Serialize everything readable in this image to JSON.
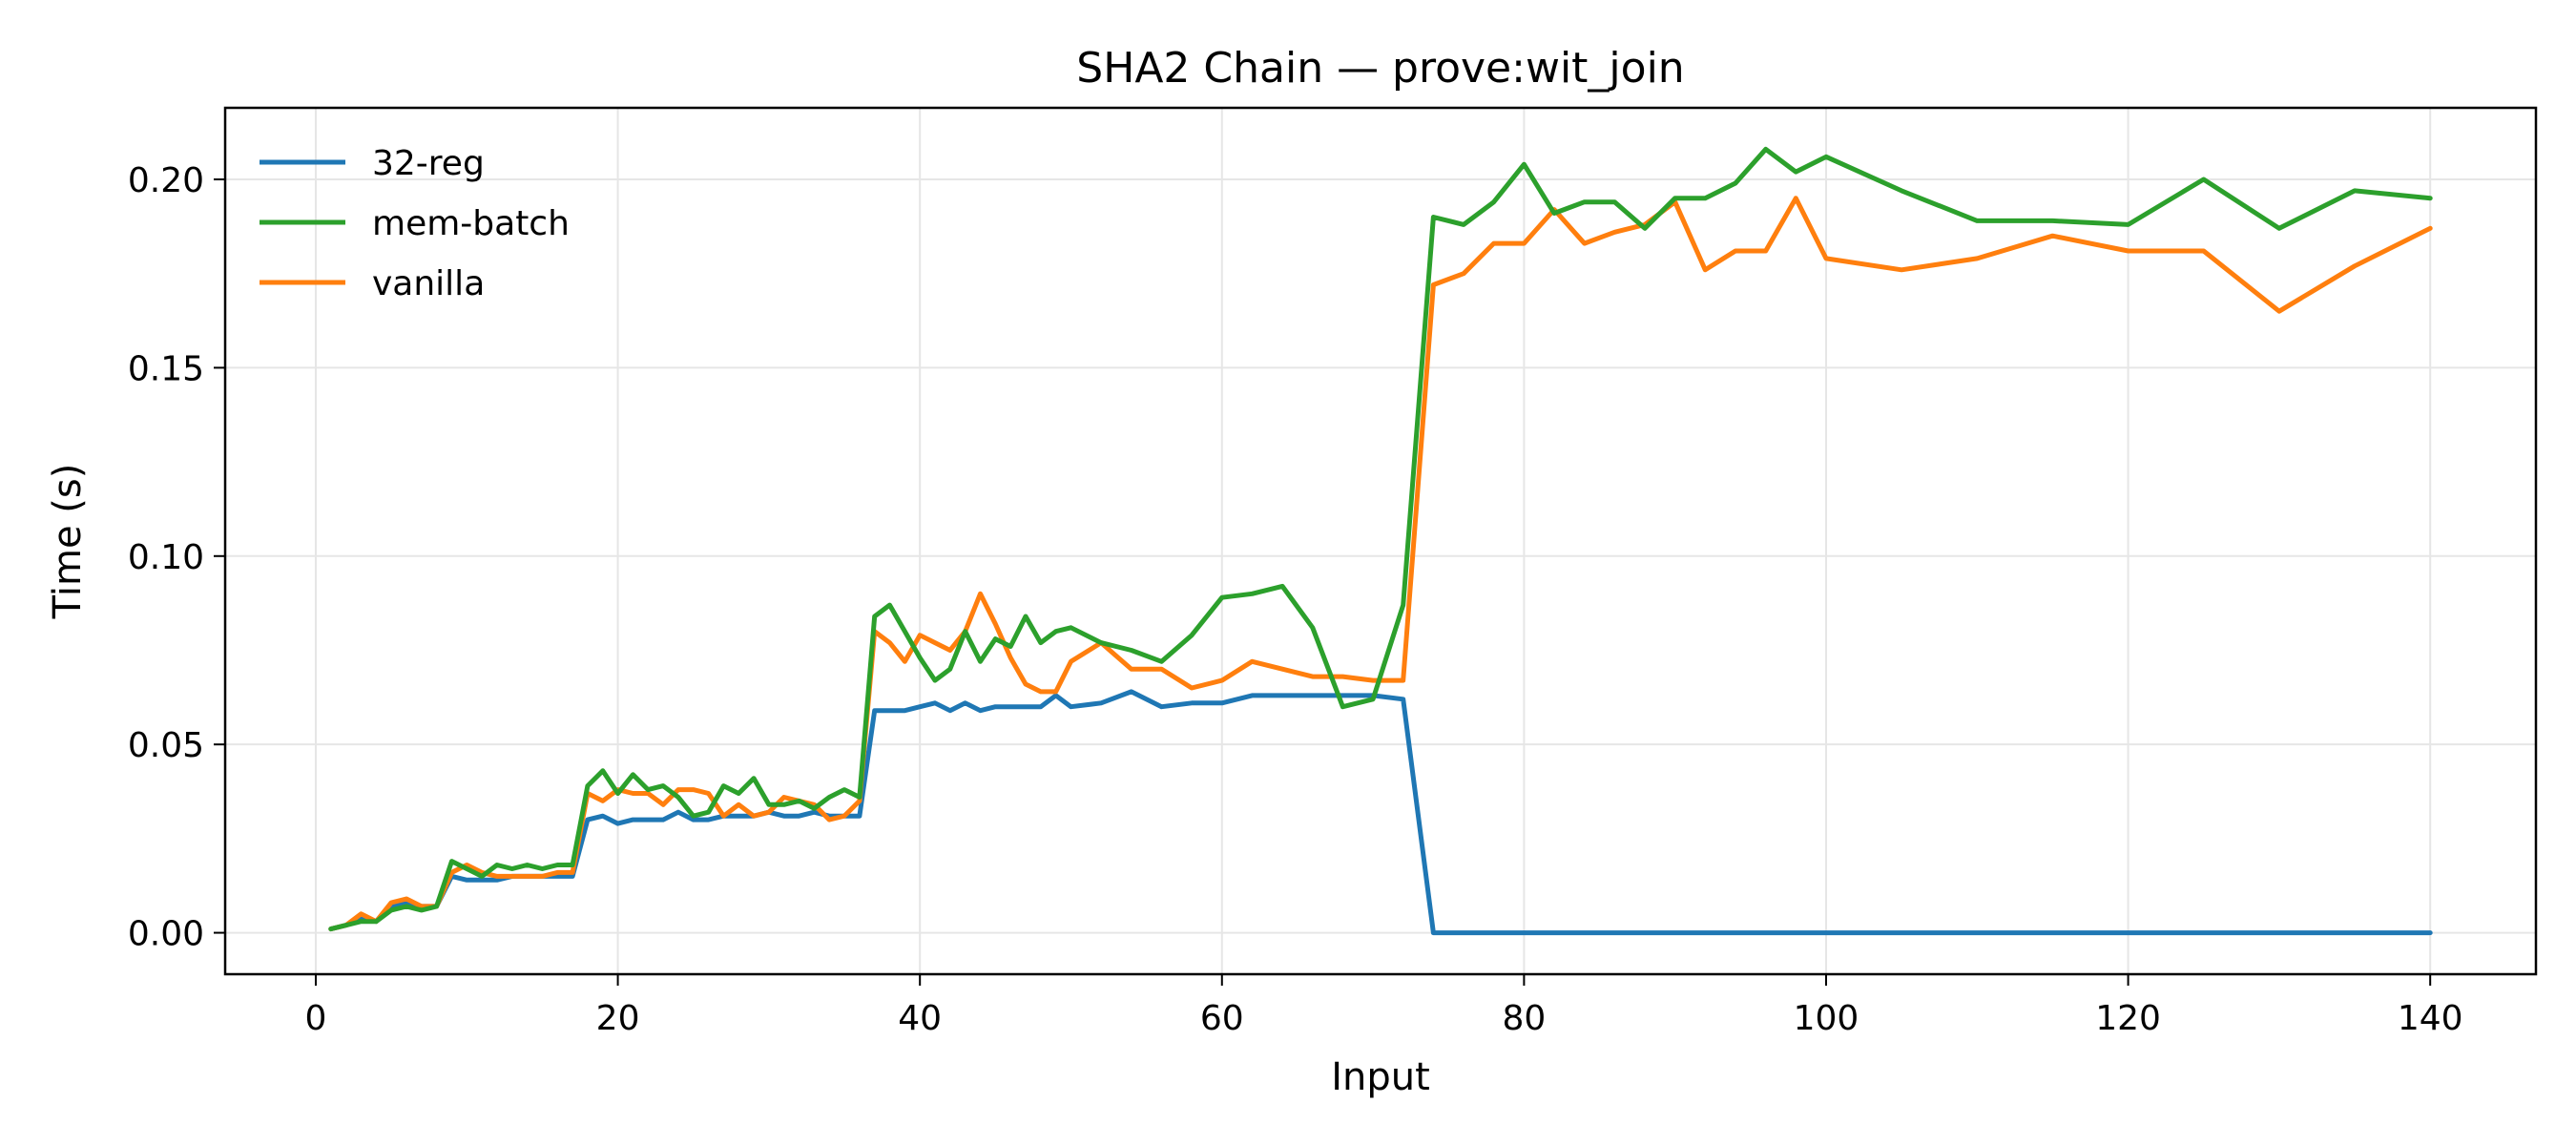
{
  "chart_data": {
    "type": "line",
    "title": "SHA2 Chain — prove:wit_join",
    "xlabel": "Input",
    "ylabel": "Time (s)",
    "xlim": [
      -6,
      147
    ],
    "ylim": [
      -0.011,
      0.219
    ],
    "xticks": [
      0,
      20,
      40,
      60,
      80,
      100,
      120,
      140
    ],
    "xtick_labels": [
      "0",
      "20",
      "40",
      "60",
      "80",
      "100",
      "120",
      "140"
    ],
    "yticks": [
      0.0,
      0.05,
      0.1,
      0.15,
      0.2
    ],
    "ytick_labels": [
      "0.00",
      "0.05",
      "0.10",
      "0.15",
      "0.20"
    ],
    "grid": true,
    "legend_position": "upper-left",
    "series": [
      {
        "name": "32-reg",
        "color": "#1f77b4",
        "points": [
          [
            1,
            0.001
          ],
          [
            2,
            0.002
          ],
          [
            3,
            0.004
          ],
          [
            4,
            0.003
          ],
          [
            5,
            0.007
          ],
          [
            6,
            0.008
          ],
          [
            7,
            0.007
          ],
          [
            8,
            0.007
          ],
          [
            9,
            0.015
          ],
          [
            10,
            0.014
          ],
          [
            11,
            0.014
          ],
          [
            12,
            0.014
          ],
          [
            13,
            0.015
          ],
          [
            14,
            0.015
          ],
          [
            15,
            0.015
          ],
          [
            16,
            0.015
          ],
          [
            17,
            0.015
          ],
          [
            18,
            0.03
          ],
          [
            19,
            0.031
          ],
          [
            20,
            0.029
          ],
          [
            21,
            0.03
          ],
          [
            22,
            0.03
          ],
          [
            23,
            0.03
          ],
          [
            24,
            0.032
          ],
          [
            25,
            0.03
          ],
          [
            26,
            0.03
          ],
          [
            27,
            0.031
          ],
          [
            28,
            0.031
          ],
          [
            29,
            0.031
          ],
          [
            30,
            0.032
          ],
          [
            31,
            0.031
          ],
          [
            32,
            0.031
          ],
          [
            33,
            0.032
          ],
          [
            34,
            0.031
          ],
          [
            35,
            0.031
          ],
          [
            36,
            0.031
          ],
          [
            37,
            0.059
          ],
          [
            38,
            0.059
          ],
          [
            39,
            0.059
          ],
          [
            40,
            0.06
          ],
          [
            41,
            0.061
          ],
          [
            42,
            0.059
          ],
          [
            43,
            0.061
          ],
          [
            44,
            0.059
          ],
          [
            45,
            0.06
          ],
          [
            46,
            0.06
          ],
          [
            47,
            0.06
          ],
          [
            48,
            0.06
          ],
          [
            49,
            0.063
          ],
          [
            50,
            0.06
          ],
          [
            52,
            0.061
          ],
          [
            54,
            0.064
          ],
          [
            56,
            0.06
          ],
          [
            58,
            0.061
          ],
          [
            60,
            0.061
          ],
          [
            62,
            0.063
          ],
          [
            64,
            0.063
          ],
          [
            66,
            0.063
          ],
          [
            68,
            0.063
          ],
          [
            70,
            0.063
          ],
          [
            72,
            0.062
          ],
          [
            74,
            0.0
          ],
          [
            76,
            0.0
          ],
          [
            78,
            0.0
          ],
          [
            80,
            0.0
          ],
          [
            82,
            0.0
          ],
          [
            84,
            0.0
          ],
          [
            86,
            0.0
          ],
          [
            88,
            0.0
          ],
          [
            90,
            0.0
          ],
          [
            92,
            0.0
          ],
          [
            94,
            0.0
          ],
          [
            96,
            0.0
          ],
          [
            98,
            0.0
          ],
          [
            100,
            0.0
          ],
          [
            105,
            0.0
          ],
          [
            110,
            0.0
          ],
          [
            115,
            0.0
          ],
          [
            120,
            0.0
          ],
          [
            125,
            0.0
          ],
          [
            130,
            0.0
          ],
          [
            135,
            0.0
          ],
          [
            140,
            0.0
          ]
        ]
      },
      {
        "name": "mem-batch",
        "color": "#2ca02c",
        "points": [
          [
            1,
            0.001
          ],
          [
            2,
            0.002
          ],
          [
            3,
            0.003
          ],
          [
            4,
            0.003
          ],
          [
            5,
            0.006
          ],
          [
            6,
            0.007
          ],
          [
            7,
            0.006
          ],
          [
            8,
            0.007
          ],
          [
            9,
            0.019
          ],
          [
            10,
            0.017
          ],
          [
            11,
            0.015
          ],
          [
            12,
            0.018
          ],
          [
            13,
            0.017
          ],
          [
            14,
            0.018
          ],
          [
            15,
            0.017
          ],
          [
            16,
            0.018
          ],
          [
            17,
            0.018
          ],
          [
            18,
            0.039
          ],
          [
            19,
            0.043
          ],
          [
            20,
            0.037
          ],
          [
            21,
            0.042
          ],
          [
            22,
            0.038
          ],
          [
            23,
            0.039
          ],
          [
            24,
            0.036
          ],
          [
            25,
            0.031
          ],
          [
            26,
            0.032
          ],
          [
            27,
            0.039
          ],
          [
            28,
            0.037
          ],
          [
            29,
            0.041
          ],
          [
            30,
            0.034
          ],
          [
            31,
            0.034
          ],
          [
            32,
            0.035
          ],
          [
            33,
            0.033
          ],
          [
            34,
            0.036
          ],
          [
            35,
            0.038
          ],
          [
            36,
            0.036
          ],
          [
            37,
            0.084
          ],
          [
            38,
            0.087
          ],
          [
            39,
            0.08
          ],
          [
            40,
            0.073
          ],
          [
            41,
            0.067
          ],
          [
            42,
            0.07
          ],
          [
            43,
            0.08
          ],
          [
            44,
            0.072
          ],
          [
            45,
            0.078
          ],
          [
            46,
            0.076
          ],
          [
            47,
            0.084
          ],
          [
            48,
            0.077
          ],
          [
            49,
            0.08
          ],
          [
            50,
            0.081
          ],
          [
            52,
            0.077
          ],
          [
            54,
            0.075
          ],
          [
            56,
            0.072
          ],
          [
            58,
            0.079
          ],
          [
            60,
            0.089
          ],
          [
            62,
            0.09
          ],
          [
            64,
            0.092
          ],
          [
            66,
            0.081
          ],
          [
            68,
            0.06
          ],
          [
            70,
            0.062
          ],
          [
            72,
            0.087
          ],
          [
            74,
            0.19
          ],
          [
            76,
            0.188
          ],
          [
            78,
            0.194
          ],
          [
            80,
            0.204
          ],
          [
            82,
            0.191
          ],
          [
            84,
            0.194
          ],
          [
            86,
            0.194
          ],
          [
            88,
            0.187
          ],
          [
            90,
            0.195
          ],
          [
            92,
            0.195
          ],
          [
            94,
            0.199
          ],
          [
            96,
            0.208
          ],
          [
            98,
            0.202
          ],
          [
            100,
            0.206
          ],
          [
            105,
            0.197
          ],
          [
            110,
            0.189
          ],
          [
            115,
            0.189
          ],
          [
            120,
            0.188
          ],
          [
            125,
            0.2
          ],
          [
            130,
            0.187
          ],
          [
            135,
            0.197
          ],
          [
            140,
            0.195
          ]
        ]
      },
      {
        "name": "vanilla",
        "color": "#ff7f0e",
        "points": [
          [
            1,
            0.001
          ],
          [
            2,
            0.002
          ],
          [
            3,
            0.005
          ],
          [
            4,
            0.003
          ],
          [
            5,
            0.008
          ],
          [
            6,
            0.009
          ],
          [
            7,
            0.007
          ],
          [
            8,
            0.007
          ],
          [
            9,
            0.016
          ],
          [
            10,
            0.018
          ],
          [
            11,
            0.016
          ],
          [
            12,
            0.015
          ],
          [
            13,
            0.015
          ],
          [
            14,
            0.015
          ],
          [
            15,
            0.015
          ],
          [
            16,
            0.016
          ],
          [
            17,
            0.016
          ],
          [
            18,
            0.037
          ],
          [
            19,
            0.035
          ],
          [
            20,
            0.038
          ],
          [
            21,
            0.037
          ],
          [
            22,
            0.037
          ],
          [
            23,
            0.034
          ],
          [
            24,
            0.038
          ],
          [
            25,
            0.038
          ],
          [
            26,
            0.037
          ],
          [
            27,
            0.031
          ],
          [
            28,
            0.034
          ],
          [
            29,
            0.031
          ],
          [
            30,
            0.032
          ],
          [
            31,
            0.036
          ],
          [
            32,
            0.035
          ],
          [
            33,
            0.034
          ],
          [
            34,
            0.03
          ],
          [
            35,
            0.031
          ],
          [
            36,
            0.035
          ],
          [
            37,
            0.08
          ],
          [
            38,
            0.077
          ],
          [
            39,
            0.072
          ],
          [
            40,
            0.079
          ],
          [
            41,
            0.077
          ],
          [
            42,
            0.075
          ],
          [
            43,
            0.08
          ],
          [
            44,
            0.09
          ],
          [
            45,
            0.082
          ],
          [
            46,
            0.073
          ],
          [
            47,
            0.066
          ],
          [
            48,
            0.064
          ],
          [
            49,
            0.064
          ],
          [
            50,
            0.072
          ],
          [
            52,
            0.077
          ],
          [
            54,
            0.07
          ],
          [
            56,
            0.07
          ],
          [
            58,
            0.065
          ],
          [
            60,
            0.067
          ],
          [
            62,
            0.072
          ],
          [
            64,
            0.07
          ],
          [
            66,
            0.068
          ],
          [
            68,
            0.068
          ],
          [
            70,
            0.067
          ],
          [
            72,
            0.067
          ],
          [
            74,
            0.172
          ],
          [
            76,
            0.175
          ],
          [
            78,
            0.183
          ],
          [
            80,
            0.183
          ],
          [
            82,
            0.192
          ],
          [
            84,
            0.183
          ],
          [
            86,
            0.186
          ],
          [
            88,
            0.188
          ],
          [
            90,
            0.194
          ],
          [
            92,
            0.176
          ],
          [
            94,
            0.181
          ],
          [
            96,
            0.181
          ],
          [
            98,
            0.195
          ],
          [
            100,
            0.179
          ],
          [
            105,
            0.176
          ],
          [
            110,
            0.179
          ],
          [
            115,
            0.185
          ],
          [
            120,
            0.181
          ],
          [
            125,
            0.181
          ],
          [
            130,
            0.165
          ],
          [
            135,
            0.177
          ],
          [
            140,
            0.187
          ]
        ]
      }
    ]
  }
}
